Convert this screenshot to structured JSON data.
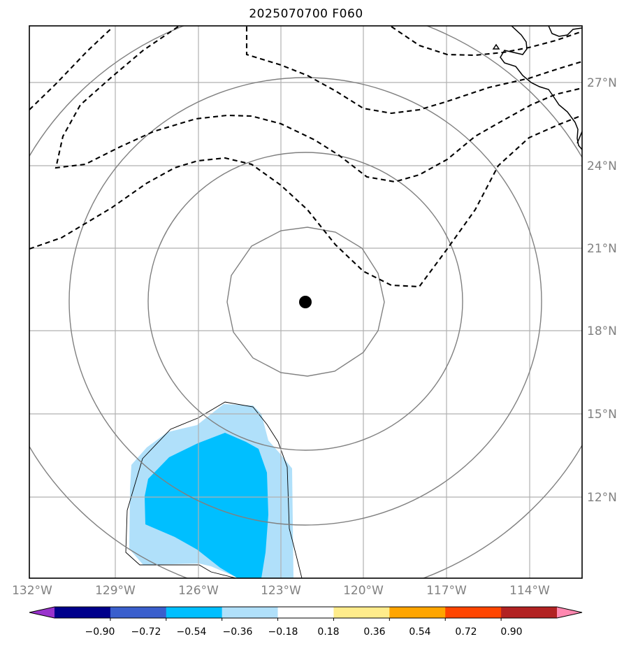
{
  "title": "2025070700 F060",
  "lon_ticks": [
    "132°W",
    "129°W",
    "126°W",
    "123°W",
    "120°W",
    "117°W",
    "114°W"
  ],
  "lat_ticks": [
    "27°N",
    "24°N",
    "21°N",
    "18°N",
    "15°N",
    "12°N"
  ],
  "colorbar": {
    "tick_labels": [
      "−0.90",
      "−0.72",
      "−0.54",
      "−0.36",
      "−0.18",
      "0.18",
      "0.36",
      "0.54",
      "0.72",
      "0.90"
    ],
    "colors": [
      "#9932cc",
      "#00008b",
      "#3a5fcd",
      "#00bfff",
      "#b0e0fa",
      "#ffffff",
      "#ffec8b",
      "#ffa500",
      "#ff4500",
      "#b22222",
      "#ff88b0"
    ]
  },
  "colors": {
    "shade_light": "#b0e0fa",
    "shade_dark": "#00bfff",
    "range_rings": "#808080",
    "grid": "#b0b0b0",
    "dashed_contour": "#000000"
  },
  "storm_center": {
    "lon": -122.1,
    "lat": 19.0
  }
}
